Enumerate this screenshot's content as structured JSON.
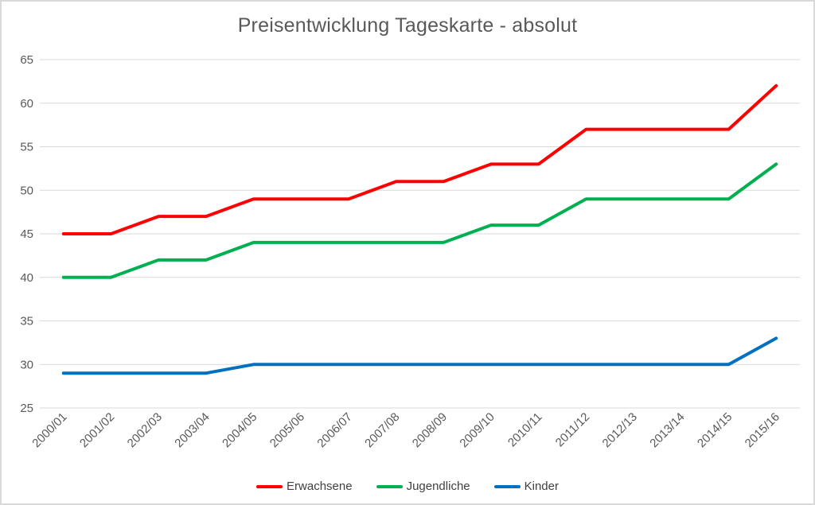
{
  "window": {
    "background": "#FFFFFF",
    "border_color": "#D9D9D9"
  },
  "style": {
    "title_color": "#595959",
    "axis_label_color": "#595959",
    "legend_text_color": "#404040",
    "gridline_color": "#D9D9D9",
    "line_width": 4
  },
  "chart_data": {
    "type": "line",
    "title": "Preisentwicklung Tageskarte - absolut",
    "xlabel": "",
    "ylabel": "",
    "categories": [
      "2000/01",
      "2001/02",
      "2002/03",
      "2003/04",
      "2004/05",
      "2005/06",
      "2006/07",
      "2007/08",
      "2008/09",
      "2009/10",
      "2010/11",
      "2011/12",
      "2012/13",
      "2013/14",
      "2014/15",
      "2015/16"
    ],
    "series": [
      {
        "name": "Erwachsene",
        "color": "#FF0000",
        "values": [
          45,
          45,
          47,
          47,
          49,
          49,
          49,
          51,
          51,
          53,
          53,
          57,
          57,
          57,
          57,
          62
        ]
      },
      {
        "name": "Jugendliche",
        "color": "#00B050",
        "values": [
          40,
          40,
          42,
          42,
          44,
          44,
          44,
          44,
          44,
          46,
          46,
          49,
          49,
          49,
          49,
          53
        ]
      },
      {
        "name": "Kinder",
        "color": "#0070C0",
        "values": [
          29,
          29,
          29,
          29,
          30,
          30,
          30,
          30,
          30,
          30,
          30,
          30,
          30,
          30,
          30,
          33
        ]
      }
    ],
    "ylim": [
      25,
      65
    ],
    "yticks": [
      65,
      60,
      55,
      50,
      45,
      40,
      35,
      30,
      25
    ],
    "grid": true,
    "legend_position": "bottom",
    "x_tick_rotation_deg": 45
  }
}
